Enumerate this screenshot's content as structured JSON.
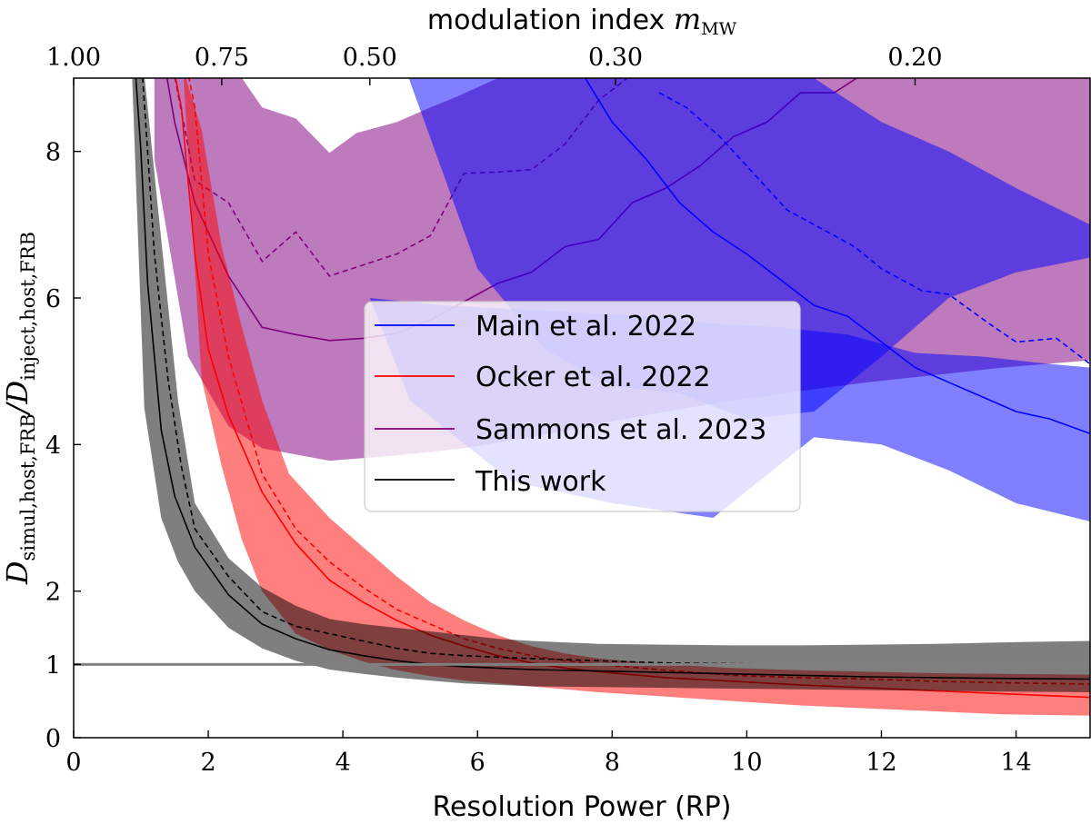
{
  "chart_data": {
    "type": "line",
    "xlabel": "Resolution Power (RP)",
    "xlim": [
      0,
      15.1
    ],
    "ylim": [
      0,
      9
    ],
    "x_ticks": [
      0,
      2,
      4,
      6,
      8,
      10,
      12,
      14
    ],
    "y_ticks": [
      0,
      1,
      2,
      4,
      6,
      8
    ],
    "ylabel": {
      "prefix": "D",
      "num_sub": "simul,host,FRB",
      "slash": "/D",
      "den_sub": "inject,host,FRB"
    },
    "top_axis": {
      "label": "modulation index ",
      "label_math": "m",
      "label_sub": "MW",
      "ticks": [
        {
          "label": "1.00",
          "rp": 0.0
        },
        {
          "label": "0.75",
          "rp": 2.2
        },
        {
          "label": "0.50",
          "rp": 4.4
        },
        {
          "label": "0.30",
          "rp": 8.05
        },
        {
          "label": "0.20",
          "rp": 12.5
        }
      ]
    },
    "reference_line": {
      "y": 1,
      "color": "#808080"
    },
    "legend": {
      "placement": "center",
      "entries": [
        "Main et al. 2022",
        "Ocker et al. 2022",
        "Sammons et al. 2023",
        "This work"
      ]
    },
    "series": [
      {
        "name": "Sammons et al. 2023",
        "color": "#800080",
        "band_color": "#800080",
        "band_opacity": 0.52,
        "band_upper": {
          "x": [
            1.2,
            2.5,
            2.8,
            3.3,
            3.8,
            4.2,
            4.8,
            5.3,
            5.7,
            6.3,
            7.0,
            8.0,
            10.0,
            12.0,
            13.0,
            14.0,
            15.1
          ],
          "y": [
            9.5,
            9.0,
            8.6,
            8.45,
            7.98,
            8.25,
            8.4,
            8.6,
            8.75,
            9.0,
            9.3,
            9.5,
            9.5,
            9.5,
            9.5,
            9.4,
            9.4
          ]
        },
        "band_lower": {
          "x": [
            1.2,
            1.7,
            2.3,
            2.8,
            3.8,
            4.8,
            5.8,
            6.8,
            7.8,
            8.8,
            9.8,
            10.8,
            11.8,
            12.8,
            13.8,
            15.1
          ],
          "y": [
            7.9,
            5.2,
            4.25,
            3.95,
            3.78,
            3.85,
            3.95,
            4.1,
            4.28,
            4.45,
            4.6,
            4.73,
            4.85,
            4.95,
            5.05,
            5.15
          ]
        },
        "median": {
          "x": [
            1.2,
            1.5,
            1.8,
            2.3,
            2.8,
            3.3,
            3.8,
            4.3,
            4.8,
            5.3,
            5.8,
            6.3,
            6.8,
            7.3,
            7.8,
            8.3,
            8.8,
            9.3,
            9.8,
            10.3,
            10.8,
            11.3,
            11.8
          ],
          "y": [
            10.0,
            8.4,
            7.3,
            6.3,
            5.6,
            5.5,
            5.42,
            5.45,
            5.52,
            5.7,
            5.95,
            6.2,
            6.35,
            6.7,
            6.8,
            7.3,
            7.5,
            7.8,
            8.2,
            8.4,
            8.8,
            8.8,
            9.1
          ]
        },
        "mean": {
          "x": [
            1.4,
            1.8,
            2.3,
            2.8,
            3.3,
            3.8,
            4.3,
            4.8,
            5.3,
            5.8,
            6.3,
            6.8,
            7.3,
            7.8,
            8.3
          ],
          "y": [
            9.5,
            7.6,
            7.3,
            6.5,
            6.9,
            6.3,
            6.45,
            6.6,
            6.85,
            7.7,
            7.72,
            7.75,
            8.1,
            8.7,
            9.05
          ]
        }
      },
      {
        "name": "Main et al. 2022",
        "color": "#0000ff",
        "band_color": "#0000ff",
        "band_opacity": 0.5,
        "band_upper": {
          "x": [
            6.0,
            7.0,
            8.0,
            9.0,
            10.0,
            11.0,
            12.0,
            13.0,
            14.0,
            15.1
          ],
          "y": [
            9.2,
            9.3,
            9.3,
            9.3,
            9.2,
            9.0,
            8.4,
            8.0,
            7.5,
            7.0
          ]
        },
        "band_lower": {
          "x": [
            4.9,
            6.0,
            7.0,
            8.0,
            9.0,
            10.0,
            11.0,
            12.0,
            13.0,
            14.0,
            15.1
          ],
          "y": [
            9.2,
            6.4,
            5.3,
            4.8,
            4.7,
            4.35,
            4.45,
            5.2,
            6.0,
            6.35,
            6.55
          ]
        },
        "band2_upper": {
          "x": [
            4.4,
            5.5,
            6.5,
            7.5,
            8.5,
            9.5,
            10.5,
            11.5,
            12.5,
            13.5,
            14.5,
            15.1
          ],
          "y": [
            6.0,
            5.9,
            5.85,
            5.8,
            5.75,
            5.65,
            5.6,
            5.5,
            5.25,
            5.2,
            5.1,
            5.05
          ]
        },
        "band2_lower": {
          "x": [
            5.0,
            6.5,
            8.0,
            9.5,
            11.0,
            12.0,
            13.0,
            14.0,
            15.1
          ],
          "y": [
            4.6,
            3.5,
            3.2,
            3.0,
            4.1,
            4.0,
            3.65,
            3.2,
            2.95
          ]
        },
        "median": {
          "x": [
            7.6,
            8.0,
            8.5,
            9.0,
            9.5,
            10.0,
            10.5,
            11.0,
            11.5,
            12.0,
            12.5,
            13.0,
            13.5,
            14.0,
            14.5,
            15.1
          ],
          "y": [
            9.0,
            8.4,
            7.9,
            7.3,
            6.9,
            6.6,
            6.25,
            5.9,
            5.75,
            5.4,
            5.05,
            4.85,
            4.65,
            4.45,
            4.35,
            4.15
          ]
        },
        "mean": {
          "x": [
            8.7,
            9.1,
            9.6,
            10.0,
            10.6,
            11.0,
            11.6,
            12.0,
            12.6,
            13.0,
            13.6,
            14.0,
            14.6,
            15.1
          ],
          "y": [
            8.8,
            8.6,
            8.2,
            7.8,
            7.2,
            7.0,
            6.7,
            6.4,
            6.1,
            6.05,
            5.65,
            5.4,
            5.45,
            5.1
          ]
        }
      },
      {
        "name": "Ocker et al. 2022",
        "color": "#ff0000",
        "band_color": "#ff0000",
        "band_opacity": 0.5,
        "band_upper": {
          "x": [
            1.3,
            1.6,
            1.9,
            2.2,
            2.5,
            2.8,
            3.2,
            3.8,
            4.3,
            4.8,
            5.3,
            5.8,
            6.3,
            6.8,
            7.3,
            7.8,
            8.8,
            9.8,
            10.8,
            11.8,
            12.8,
            13.8,
            15.1
          ],
          "y": [
            9.5,
            9.2,
            8.3,
            6.7,
            5.6,
            4.6,
            3.6,
            3.0,
            2.6,
            2.2,
            1.85,
            1.6,
            1.4,
            1.25,
            1.15,
            1.08,
            1.0,
            0.95,
            0.92,
            0.9,
            0.88,
            0.87,
            0.86
          ]
        },
        "band_lower": {
          "x": [
            15.1,
            13.8,
            12.8,
            11.8,
            10.8,
            9.8,
            8.8,
            7.8,
            7.3,
            6.8,
            6.3,
            5.8,
            5.3,
            4.8,
            4.3,
            3.8,
            3.3,
            2.8,
            2.5,
            2.2,
            1.9,
            1.6
          ],
          "y": [
            0.3,
            0.32,
            0.36,
            0.4,
            0.44,
            0.5,
            0.56,
            0.62,
            0.66,
            0.7,
            0.74,
            0.78,
            0.84,
            0.92,
            1.04,
            1.2,
            1.42,
            2.0,
            2.7,
            3.7,
            4.9,
            9.5
          ]
        },
        "median": {
          "x": [
            1.3,
            1.6,
            1.8,
            2.0,
            2.3,
            2.8,
            3.3,
            3.8,
            4.3,
            4.8,
            5.3,
            5.8,
            6.3,
            6.8,
            7.3,
            7.8,
            8.8,
            9.8,
            10.8,
            11.8,
            12.8,
            13.8,
            15.1
          ],
          "y": [
            10.0,
            8.6,
            6.6,
            5.3,
            4.4,
            3.35,
            2.65,
            2.15,
            1.85,
            1.6,
            1.4,
            1.25,
            1.12,
            1.02,
            0.95,
            0.9,
            0.82,
            0.77,
            0.72,
            0.68,
            0.64,
            0.6,
            0.55
          ]
        },
        "mean": {
          "x": [
            1.5,
            1.8,
            2.0,
            2.3,
            2.8,
            3.3,
            3.8,
            4.3,
            4.8,
            5.3,
            5.8,
            6.3,
            6.8,
            7.3,
            7.8,
            8.8,
            9.8,
            10.8,
            11.8,
            12.8,
            13.8,
            15.1
          ],
          "y": [
            10.0,
            8.6,
            6.6,
            5.2,
            3.6,
            2.85,
            2.4,
            2.05,
            1.75,
            1.55,
            1.35,
            1.22,
            1.12,
            1.05,
            1.0,
            0.92,
            0.85,
            0.82,
            0.8,
            0.77,
            0.75,
            0.73
          ]
        }
      },
      {
        "name": "This work",
        "color": "#000000",
        "band_color": "#000000",
        "band_opacity": 0.5,
        "band_upper": {
          "x": [
            0.65,
            0.85,
            1.0,
            1.3,
            1.55,
            1.8,
            2.3,
            2.8,
            3.3,
            3.8,
            4.3,
            4.8,
            5.3,
            5.8,
            6.3,
            6.8,
            7.8,
            8.8,
            9.8,
            10.8,
            11.8,
            12.8,
            13.8,
            15.1
          ],
          "y": [
            9.5,
            9.5,
            9.5,
            6.8,
            4.6,
            3.2,
            2.45,
            2.05,
            1.8,
            1.62,
            1.55,
            1.5,
            1.45,
            1.4,
            1.35,
            1.32,
            1.28,
            1.27,
            1.26,
            1.26,
            1.27,
            1.28,
            1.3,
            1.32
          ]
        },
        "band_lower": {
          "x": [
            15.1,
            13.8,
            12.8,
            11.8,
            10.8,
            9.8,
            8.8,
            7.8,
            6.8,
            6.3,
            5.8,
            5.3,
            4.8,
            4.3,
            3.8,
            3.3,
            2.8,
            2.3,
            1.8,
            1.55,
            1.3,
            1.05,
            0.85
          ],
          "y": [
            0.62,
            0.63,
            0.64,
            0.65,
            0.66,
            0.67,
            0.68,
            0.69,
            0.7,
            0.72,
            0.74,
            0.78,
            0.82,
            0.87,
            0.93,
            1.05,
            1.22,
            1.5,
            2.0,
            2.4,
            3.0,
            4.5,
            9.5
          ]
        },
        "median": {
          "x": [
            0.85,
            1.0,
            1.1,
            1.3,
            1.5,
            1.8,
            2.3,
            2.8,
            3.3,
            3.8,
            4.3,
            4.8,
            5.3,
            5.8,
            6.3,
            6.8,
            7.8,
            8.8,
            9.8,
            10.8,
            11.8,
            12.8,
            13.8,
            15.1
          ],
          "y": [
            10.0,
            8.0,
            6.2,
            4.2,
            3.3,
            2.6,
            1.95,
            1.55,
            1.35,
            1.2,
            1.12,
            1.05,
            1.0,
            0.97,
            0.95,
            0.93,
            0.91,
            0.89,
            0.87,
            0.85,
            0.83,
            0.82,
            0.81,
            0.8
          ]
        },
        "mean": {
          "x": [
            0.95,
            1.1,
            1.2,
            1.4,
            1.6,
            1.8,
            2.3,
            2.8,
            3.3,
            3.8,
            4.3,
            4.8,
            5.3,
            5.8,
            6.3,
            6.8,
            7.8,
            8.8,
            9.8,
            10.8,
            11.8,
            12.8,
            13.8,
            15.1
          ],
          "y": [
            10.0,
            8.0,
            6.6,
            4.9,
            3.7,
            2.85,
            2.2,
            1.72,
            1.52,
            1.42,
            1.32,
            1.22,
            1.15,
            1.12,
            1.1,
            1.08,
            1.05,
            1.02,
            1.01,
            1.0,
            1.0,
            1.0,
            1.0,
            1.0
          ]
        }
      }
    ]
  }
}
